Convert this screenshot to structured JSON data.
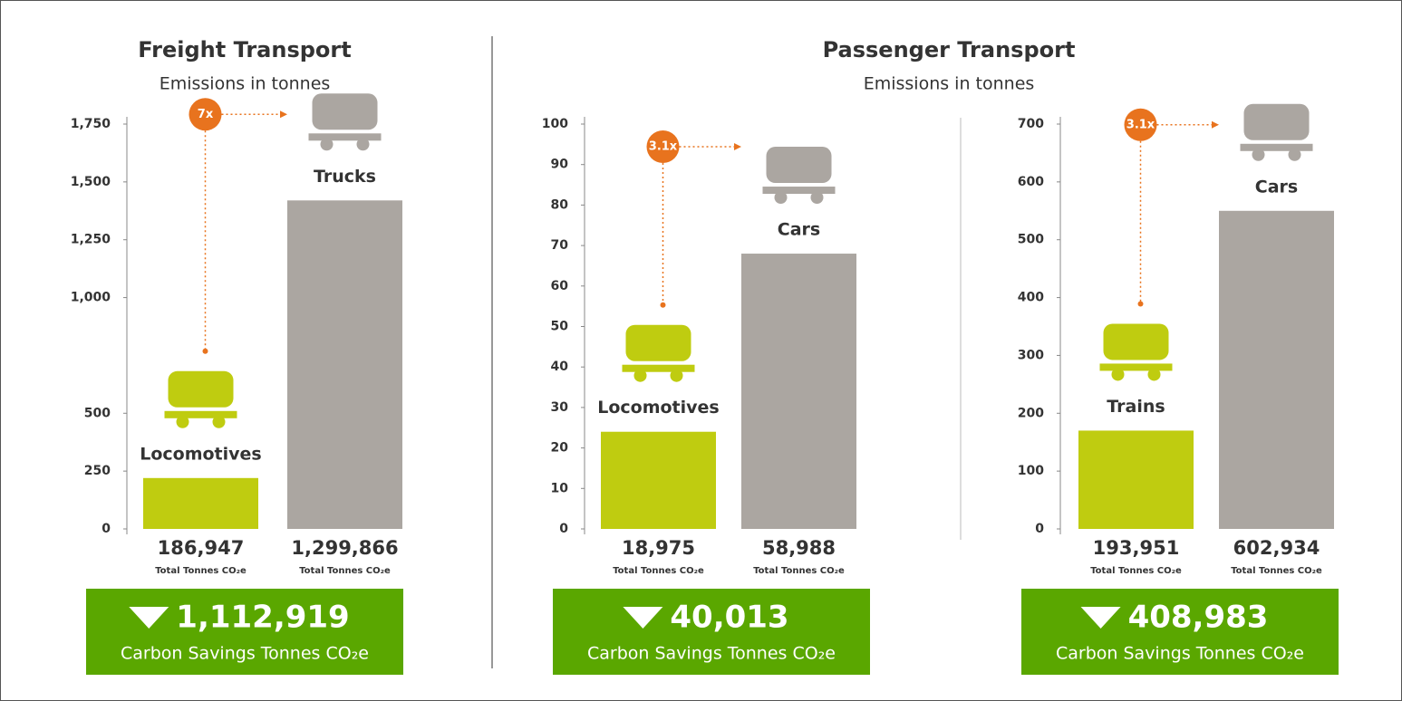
{
  "headings": [
    {
      "title": "Freight Transport",
      "subtitle": "Emissions in tonnes"
    },
    {
      "title": "Passenger Transport",
      "subtitle": "Emissions in tonnes"
    }
  ],
  "chart_data": [
    {
      "type": "bar",
      "categories": [
        "Locomotives",
        "Trucks"
      ],
      "values": [
        220,
        1420
      ],
      "colors": [
        "#bfcc10",
        "#aba6a1"
      ],
      "ylim": [
        0,
        1750
      ],
      "yticks": [
        0,
        250,
        500,
        {
          "value": 1000,
          "label": "1,000"
        },
        {
          "value": 1250,
          "label": "1,250"
        },
        {
          "value": 1500,
          "label": "1,500"
        },
        {
          "value": 1750,
          "label": "1,750"
        }
      ],
      "totals": [
        "186,947",
        "1,299,866"
      ],
      "total_label": "Total Tonnes CO₂e",
      "multiplier": "7x",
      "savings": "1,112,919",
      "savings_label": "Carbon Savings Tonnes CO₂e"
    },
    {
      "type": "bar",
      "categories": [
        "Locomotives",
        "Cars"
      ],
      "values": [
        24,
        68
      ],
      "colors": [
        "#bfcc10",
        "#aba6a1"
      ],
      "ylim": [
        0,
        100
      ],
      "yticks": [
        0,
        10,
        20,
        30,
        40,
        50,
        60,
        70,
        80,
        90,
        100
      ],
      "totals": [
        "18,975",
        "58,988"
      ],
      "total_label": "Total Tonnes CO₂e",
      "multiplier": "3.1x",
      "savings": "40,013",
      "savings_label": "Carbon Savings Tonnes CO₂e"
    },
    {
      "type": "bar",
      "categories": [
        "Trains",
        "Cars"
      ],
      "values": [
        170,
        550
      ],
      "colors": [
        "#bfcc10",
        "#aba6a1"
      ],
      "ylim": [
        0,
        700
      ],
      "yticks": [
        0,
        100,
        200,
        300,
        400,
        500,
        600,
        700
      ],
      "totals": [
        "193,951",
        "602,934"
      ],
      "total_label": "Total Tonnes CO₂e",
      "multiplier": "3.1x",
      "savings": "408,983",
      "savings_label": "Carbon Savings Tonnes CO₂e"
    }
  ]
}
